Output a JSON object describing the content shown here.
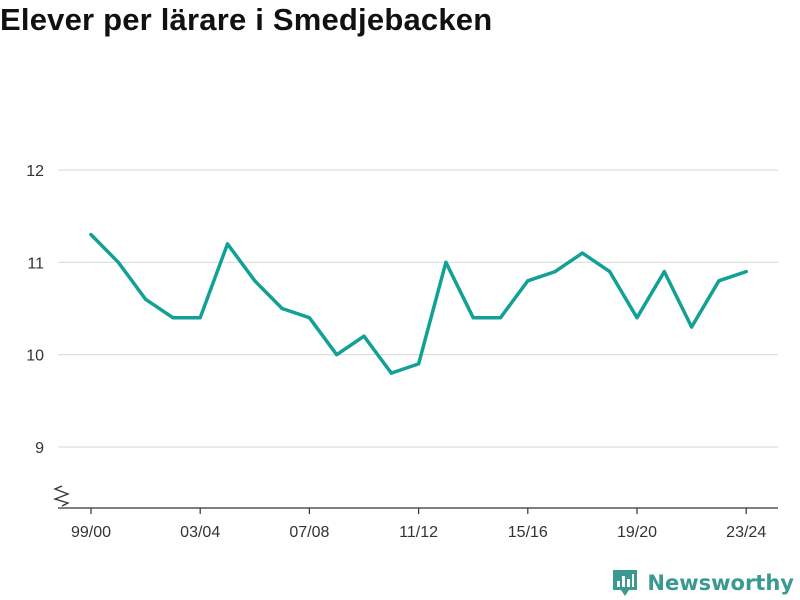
{
  "title": "Elever per lärare i Smedjebacken",
  "brand": {
    "name": "Newsworthy",
    "icon": "bar-chart-pin-icon"
  },
  "colors": {
    "line": "#13a095",
    "grid": "#dddddd",
    "axis": "#333333",
    "brand": "#3a9a92"
  },
  "chart_data": {
    "type": "line",
    "title": "Elever per lärare i Smedjebacken",
    "xlabel": "",
    "ylabel": "",
    "x": [
      "99/00",
      "00/01",
      "01/02",
      "02/03",
      "03/04",
      "04/05",
      "05/06",
      "06/07",
      "07/08",
      "08/09",
      "09/10",
      "10/11",
      "11/12",
      "12/13",
      "13/14",
      "14/15",
      "15/16",
      "16/17",
      "17/18",
      "18/19",
      "19/20",
      "20/21",
      "21/22",
      "22/23",
      "23/24"
    ],
    "x_tick_labels": [
      "99/00",
      "03/04",
      "07/08",
      "11/12",
      "15/16",
      "19/20",
      "23/24"
    ],
    "series": [
      {
        "values": [
          11.3,
          11.0,
          10.6,
          10.4,
          10.4,
          11.2,
          10.8,
          10.5,
          10.4,
          10.0,
          10.2,
          9.8,
          9.9,
          11.0,
          10.4,
          10.4,
          10.8,
          10.9,
          11.1,
          10.9,
          10.4,
          10.9,
          10.3,
          10.8,
          10.9
        ]
      }
    ],
    "y_ticks": [
      9,
      10,
      11,
      12
    ],
    "ylim": [
      8.4,
      12
    ],
    "y_axis_break": true,
    "grid": true,
    "legend": "none"
  }
}
